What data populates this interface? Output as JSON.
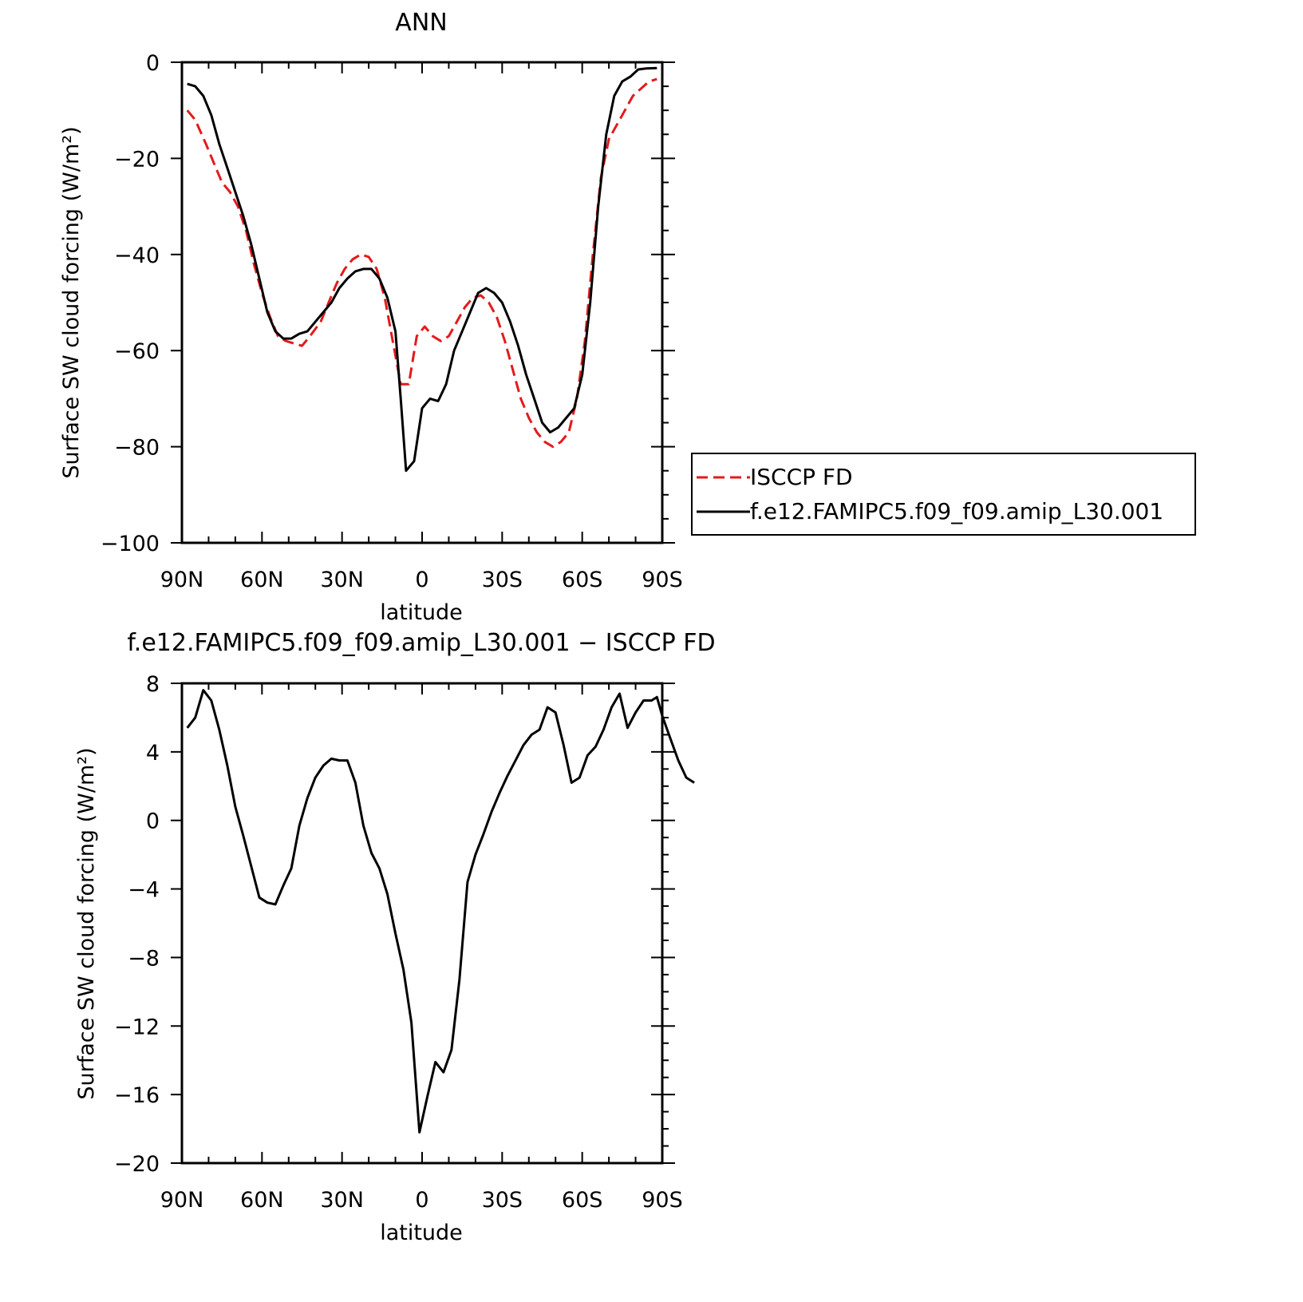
{
  "chart_data": [
    {
      "type": "line",
      "title": "ANN",
      "xlabel": "latitude",
      "ylabel": "Surface SW cloud forcing (W/m²)",
      "xlim": [
        90,
        -90
      ],
      "ylim": [
        -100,
        0
      ],
      "x_ticks": [
        {
          "value": 90,
          "label": "90N"
        },
        {
          "value": 60,
          "label": "60N"
        },
        {
          "value": 30,
          "label": "30N"
        },
        {
          "value": 0,
          "label": "0"
        },
        {
          "value": -30,
          "label": "30S"
        },
        {
          "value": -60,
          "label": "60S"
        },
        {
          "value": -90,
          "label": "90S"
        }
      ],
      "y_ticks": [
        {
          "value": 0,
          "label": "0"
        },
        {
          "value": -20,
          "label": "−20"
        },
        {
          "value": -40,
          "label": "−40"
        },
        {
          "value": -60,
          "label": "−60"
        },
        {
          "value": -80,
          "label": "−80"
        },
        {
          "value": -100,
          "label": "−100"
        }
      ],
      "y_minor_step": 5,
      "legend": {
        "placement": "right, outside plot"
      },
      "series": [
        {
          "name": "ISCCP FD",
          "color": "#e31a1c",
          "dash": "dashed",
          "points": [
            [
              88,
              -10
            ],
            [
              85,
              -12
            ],
            [
              81,
              -17
            ],
            [
              78,
              -21
            ],
            [
              75,
              -25
            ],
            [
              72,
              -27
            ],
            [
              69,
              -30
            ],
            [
              66,
              -35
            ],
            [
              63,
              -42
            ],
            [
              60,
              -48
            ],
            [
              57,
              -53
            ],
            [
              54,
              -57
            ],
            [
              51,
              -58
            ],
            [
              48,
              -58.5
            ],
            [
              45,
              -59
            ],
            [
              42,
              -57
            ],
            [
              38,
              -54
            ],
            [
              35,
              -50
            ],
            [
              32,
              -46
            ],
            [
              29,
              -43
            ],
            [
              26,
              -41
            ],
            [
              23,
              -40
            ],
            [
              20,
              -40.5
            ],
            [
              17,
              -43
            ],
            [
              14,
              -49
            ],
            [
              11,
              -58
            ],
            [
              8,
              -67
            ],
            [
              5,
              -67
            ],
            [
              2,
              -57
            ],
            [
              -1,
              -55
            ],
            [
              -4,
              -57
            ],
            [
              -7,
              -58
            ],
            [
              -10,
              -57
            ],
            [
              -13,
              -54
            ],
            [
              -16,
              -51
            ],
            [
              -19,
              -49
            ],
            [
              -22,
              -48.5
            ],
            [
              -25,
              -50
            ],
            [
              -28,
              -53
            ],
            [
              -31,
              -58
            ],
            [
              -34,
              -64
            ],
            [
              -37,
              -70
            ],
            [
              -40,
              -74
            ],
            [
              -43,
              -77
            ],
            [
              -46,
              -79
            ],
            [
              -49,
              -80
            ],
            [
              -52,
              -79
            ],
            [
              -55,
              -77
            ],
            [
              -58,
              -70
            ],
            [
              -61,
              -58
            ],
            [
              -64,
              -40
            ],
            [
              -67,
              -24
            ],
            [
              -70,
              -16
            ],
            [
              -73,
              -13
            ],
            [
              -76,
              -10
            ],
            [
              -79,
              -7
            ],
            [
              -82,
              -5.5
            ],
            [
              -85,
              -4
            ],
            [
              -88,
              -3.5
            ]
          ]
        },
        {
          "name": "f.e12.FAMIPC5.f09_f09.amip_L30.001",
          "color": "#000000",
          "dash": "solid",
          "points": [
            [
              88,
              -4.5
            ],
            [
              85,
              -5
            ],
            [
              82,
              -7
            ],
            [
              79,
              -11
            ],
            [
              76,
              -17
            ],
            [
              73,
              -22
            ],
            [
              70,
              -27
            ],
            [
              67,
              -32
            ],
            [
              64,
              -38
            ],
            [
              61,
              -45
            ],
            [
              58,
              -52
            ],
            [
              55,
              -56
            ],
            [
              52,
              -57.5
            ],
            [
              49,
              -57.5
            ],
            [
              46,
              -56.5
            ],
            [
              43,
              -56
            ],
            [
              40,
              -54
            ],
            [
              37,
              -52
            ],
            [
              34,
              -50
            ],
            [
              31,
              -47
            ],
            [
              28,
              -45
            ],
            [
              25,
              -43.5
            ],
            [
              22,
              -43
            ],
            [
              19,
              -43
            ],
            [
              16,
              -45
            ],
            [
              13,
              -49
            ],
            [
              10,
              -56
            ],
            [
              8,
              -70
            ],
            [
              6,
              -85
            ],
            [
              3,
              -83
            ],
            [
              0,
              -72
            ],
            [
              -3,
              -70
            ],
            [
              -6,
              -70.5
            ],
            [
              -9,
              -67
            ],
            [
              -12,
              -60
            ],
            [
              -15,
              -56
            ],
            [
              -18,
              -52
            ],
            [
              -21,
              -48
            ],
            [
              -24,
              -47
            ],
            [
              -27,
              -48
            ],
            [
              -30,
              -50
            ],
            [
              -33,
              -54
            ],
            [
              -36,
              -59
            ],
            [
              -39,
              -65
            ],
            [
              -42,
              -70
            ],
            [
              -45,
              -75
            ],
            [
              -48,
              -77
            ],
            [
              -51,
              -76
            ],
            [
              -54,
              -74
            ],
            [
              -57,
              -72
            ],
            [
              -60,
              -65
            ],
            [
              -63,
              -50
            ],
            [
              -66,
              -30
            ],
            [
              -69,
              -15
            ],
            [
              -72,
              -7
            ],
            [
              -75,
              -4
            ],
            [
              -78,
              -3
            ],
            [
              -81,
              -1.5
            ],
            [
              -84,
              -1.3
            ],
            [
              -88,
              -1.2
            ]
          ]
        }
      ]
    },
    {
      "type": "line",
      "title": "f.e12.FAMIPC5.f09_f09.amip_L30.001 − ISCCP FD",
      "xlabel": "latitude",
      "ylabel": "Surface SW cloud forcing (W/m²)",
      "xlim": [
        90,
        -90
      ],
      "ylim": [
        -20,
        8
      ],
      "x_ticks": [
        {
          "value": 90,
          "label": "90N"
        },
        {
          "value": 60,
          "label": "60N"
        },
        {
          "value": 30,
          "label": "30N"
        },
        {
          "value": 0,
          "label": "0"
        },
        {
          "value": -30,
          "label": "30S"
        },
        {
          "value": -60,
          "label": "60S"
        },
        {
          "value": -90,
          "label": "90S"
        }
      ],
      "y_ticks": [
        {
          "value": 8,
          "label": "8"
        },
        {
          "value": 4,
          "label": "4"
        },
        {
          "value": 0,
          "label": "0"
        },
        {
          "value": -4,
          "label": "−4"
        },
        {
          "value": -8,
          "label": "−8"
        },
        {
          "value": -12,
          "label": "−12"
        },
        {
          "value": -16,
          "label": "−16"
        },
        {
          "value": -20,
          "label": "−20"
        }
      ],
      "y_minor_step": 1,
      "series": [
        {
          "color": "#000000",
          "dash": "solid",
          "points": [
            [
              88,
              5.4
            ],
            [
              85,
              6
            ],
            [
              82,
              7.6
            ],
            [
              79,
              7
            ],
            [
              76,
              5.3
            ],
            [
              73,
              3.2
            ],
            [
              70,
              0.8
            ],
            [
              67,
              -0.9
            ],
            [
              64,
              -2.7
            ],
            [
              61,
              -4.5
            ],
            [
              58,
              -4.8
            ],
            [
              55,
              -4.9
            ],
            [
              52,
              -3.8
            ],
            [
              49,
              -2.8
            ],
            [
              46,
              -0.3
            ],
            [
              43,
              1.3
            ],
            [
              40,
              2.5
            ],
            [
              37,
              3.2
            ],
            [
              34,
              3.6
            ],
            [
              31,
              3.5
            ],
            [
              28,
              3.5
            ],
            [
              25,
              2.2
            ],
            [
              22,
              -0.3
            ],
            [
              19,
              -1.9
            ],
            [
              16,
              -2.8
            ],
            [
              13,
              -4.3
            ],
            [
              10,
              -6.6
            ],
            [
              7,
              -8.7
            ],
            [
              4,
              -11.8
            ],
            [
              1,
              -18.2
            ],
            [
              -2,
              -16.1
            ],
            [
              -5,
              -14.1
            ],
            [
              -8,
              -14.7
            ],
            [
              -11,
              -13.4
            ],
            [
              -14,
              -9.3
            ],
            [
              -17,
              -3.6
            ],
            [
              -20,
              -2
            ],
            [
              -23,
              -0.8
            ],
            [
              -26,
              0.5
            ],
            [
              -29,
              1.6
            ],
            [
              -32,
              2.6
            ],
            [
              -35,
              3.5
            ],
            [
              -38,
              4.4
            ],
            [
              -41,
              5
            ],
            [
              -44,
              5.3
            ],
            [
              -47,
              6.6
            ],
            [
              -50,
              6.3
            ],
            [
              -53,
              4.4
            ],
            [
              -56,
              2.2
            ],
            [
              -59,
              2.5
            ],
            [
              -62,
              3.8
            ],
            [
              -65,
              4.3
            ],
            [
              -68,
              5.3
            ],
            [
              -71,
              6.6
            ],
            [
              -74,
              7.4
            ],
            [
              -77,
              5.4
            ],
            [
              -80,
              6.3
            ],
            [
              -83,
              7
            ],
            [
              -86,
              7
            ],
            [
              -88,
              7.2
            ],
            [
              -90,
              6.1
            ],
            [
              -93,
              4.8
            ],
            [
              -96,
              3.5
            ],
            [
              -99,
              2.5
            ],
            [
              -102,
              2.2
            ]
          ]
        }
      ]
    }
  ]
}
